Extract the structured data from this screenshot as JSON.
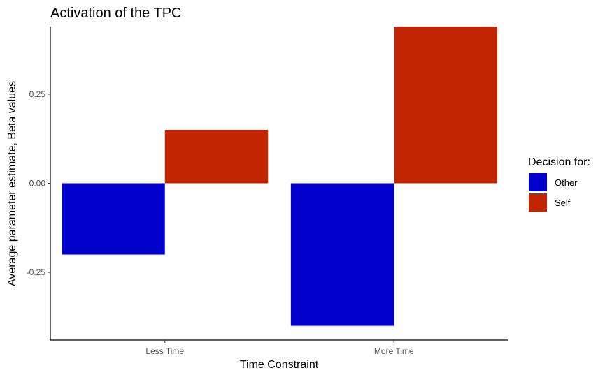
{
  "chart_data": {
    "type": "bar",
    "title": "Activation of the TPC",
    "xlabel": "Time Constraint",
    "ylabel": "Average parameter estimate, Beta values",
    "categories": [
      "Less Time",
      "More Time"
    ],
    "series": [
      {
        "name": "Other",
        "values": [
          -0.2,
          -0.4
        ],
        "color": "#0000CD"
      },
      {
        "name": "Self",
        "values": [
          0.15,
          0.44
        ],
        "color": "#C12501"
      }
    ],
    "ylim": [
      -0.44,
      0.44
    ],
    "yticks": [
      -0.25,
      0.0,
      0.25
    ],
    "ytick_labels": [
      "-0.25",
      "0.00",
      "0.25"
    ],
    "legend": {
      "title": "Decision for:",
      "placement": "right"
    },
    "grid": false
  }
}
